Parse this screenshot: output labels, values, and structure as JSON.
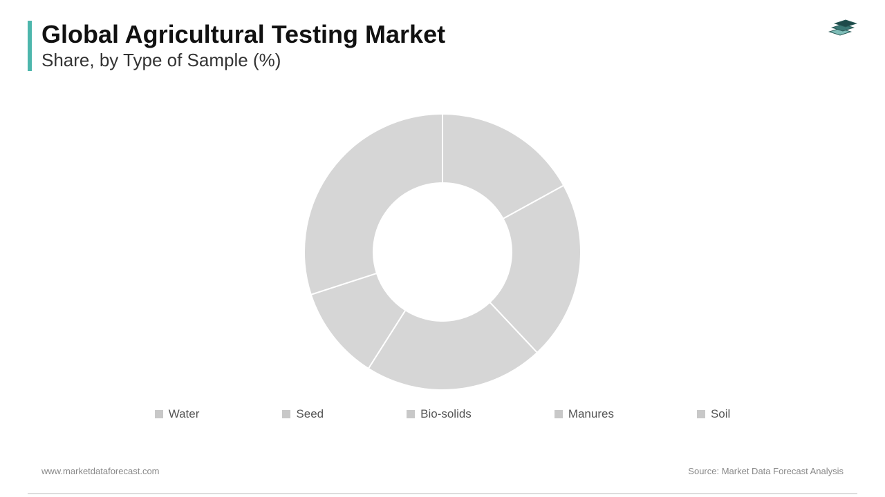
{
  "header": {
    "title": "Global Agricultural Testing Market",
    "subtitle": "Share, by Type of Sample (%)",
    "accent_color": "#4db6ac"
  },
  "logo": {
    "colors": [
      "#1e4a4a",
      "#3b7875",
      "#7fbdb8"
    ],
    "outline": "#2a5a57"
  },
  "chart": {
    "type": "donut",
    "background_color": "#ffffff",
    "slice_color": "#d6d6d6",
    "stroke_color": "#ffffff",
    "stroke_width": 2,
    "outer_radius": 200,
    "inner_radius": 100,
    "start_angle": -90,
    "segments": [
      {
        "label": "Water",
        "value": 17
      },
      {
        "label": "Seed",
        "value": 21
      },
      {
        "label": "Bio-solids",
        "value": 21
      },
      {
        "label": "Manures",
        "value": 11
      },
      {
        "label": "Soil",
        "value": 30
      }
    ]
  },
  "legend": {
    "marker_color": "#c8c8c8",
    "prefix": "■",
    "text_color": "#555555",
    "fontsize": 17,
    "items": [
      "Water",
      "Seed",
      "Bio-solids",
      "Manures",
      "Soil"
    ]
  },
  "footer": {
    "left": "www.marketdataforecast.com",
    "right": "Source: Market Data Forecast Analysis",
    "text_color": "#888888",
    "fontsize": 13
  }
}
